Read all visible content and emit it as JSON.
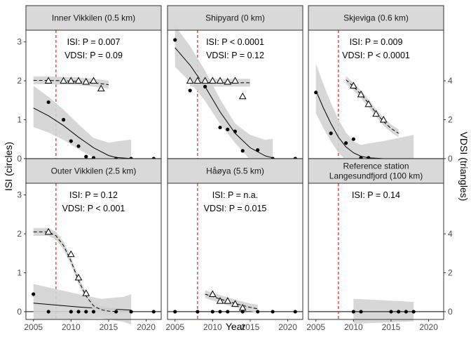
{
  "figure": {
    "xlabel": "Year",
    "ylabel_left": "ISI (circles)",
    "ylabel_right": "VDSI (triangles)"
  },
  "chart_data": [
    {
      "type": "scatter",
      "title": "Inner Vikkilen (0.5 km)",
      "annotations": [
        "ISI: P =  0.007",
        "VDSI: P =  0.09"
      ],
      "isi": {
        "x": [
          2007,
          2009,
          2010,
          2011,
          2012,
          2013,
          2016,
          2018,
          2021
        ],
        "y": [
          1.45,
          1.0,
          0.45,
          0.32,
          0.05,
          0.02,
          0.0,
          0.0,
          0.0
        ]
      },
      "isi_fit": {
        "x": [
          2005,
          2007,
          2009,
          2011,
          2013,
          2015,
          2016,
          2018
        ],
        "y": [
          1.3,
          1.1,
          0.85,
          0.55,
          0.28,
          0.08,
          0.03,
          0.0
        ]
      },
      "vdsi": {
        "x": [
          2007,
          2009,
          2010,
          2011,
          2012,
          2013,
          2014
        ],
        "y": [
          4.0,
          4.0,
          4.0,
          4.0,
          3.95,
          4.0,
          3.6
        ]
      },
      "vdsi_fit": {
        "x": [
          2005,
          2007,
          2009,
          2011,
          2013,
          2015
        ],
        "y": [
          4.02,
          4.02,
          4.0,
          3.97,
          3.9,
          3.8
        ]
      }
    },
    {
      "type": "scatter",
      "title": "Shipyard (0 km)",
      "annotations": [
        "ISI: P < 0.0001",
        "VDSI: P =  0.12"
      ],
      "isi": {
        "x": [
          2005,
          2007,
          2009,
          2010,
          2011,
          2012,
          2013,
          2014,
          2016,
          2018,
          2021
        ],
        "y": [
          3.05,
          1.75,
          1.85,
          2.0,
          0.8,
          0.75,
          0.7,
          0.2,
          0.22,
          0.0,
          0.0
        ]
      },
      "isi_fit": {
        "x": [
          2005,
          2007,
          2009,
          2011,
          2013,
          2015,
          2017,
          2018
        ],
        "y": [
          2.85,
          2.4,
          1.85,
          1.2,
          0.65,
          0.28,
          0.07,
          0.02
        ]
      },
      "vdsi": {
        "x": [
          2007,
          2008,
          2009,
          2010,
          2011,
          2012,
          2013,
          2014
        ],
        "y": [
          4.0,
          4.0,
          4.0,
          4.0,
          4.0,
          3.95,
          4.0,
          3.2
        ]
      },
      "vdsi_fit": {
        "x": [
          2007,
          2009,
          2011,
          2013,
          2015
        ],
        "y": [
          3.9,
          3.9,
          3.9,
          3.9,
          3.9
        ]
      }
    },
    {
      "type": "scatter",
      "title": "Skjeviga (0.6 km)",
      "annotations": [
        "ISI: P =  0.009",
        "VDSI: P < 0.0001"
      ],
      "isi": {
        "x": [
          2005,
          2007,
          2009,
          2010,
          2011,
          2012
        ],
        "y": [
          1.7,
          0.65,
          0.4,
          0.5,
          0.02,
          0.02
        ]
      },
      "isi_fit": {
        "x": [
          2005,
          2006,
          2007,
          2008,
          2009,
          2010,
          2011,
          2012,
          2014,
          2016,
          2018
        ],
        "y": [
          1.75,
          1.3,
          0.9,
          0.55,
          0.3,
          0.15,
          0.06,
          0.02,
          0.0,
          0.0,
          0.0
        ]
      },
      "vdsi": {
        "x": [
          2010,
          2011,
          2012,
          2013,
          2014
        ],
        "y": [
          3.75,
          3.3,
          2.8,
          2.3,
          2.0
        ]
      },
      "vdsi_fit": {
        "x": [
          2009,
          2010,
          2011,
          2012,
          2013,
          2014,
          2015,
          2016
        ],
        "y": [
          4.05,
          3.7,
          3.3,
          2.85,
          2.35,
          1.9,
          1.55,
          1.3
        ]
      }
    },
    {
      "type": "scatter",
      "title": "Outer Vikkilen (2.5 km)",
      "annotations": [
        "ISI: P =  0.12",
        "VDSI: P < 0.001"
      ],
      "isi": {
        "x": [
          2005,
          2007,
          2010,
          2011,
          2012,
          2013,
          2016,
          2018,
          2021
        ],
        "y": [
          0.45,
          0.0,
          0.0,
          0.0,
          0.0,
          0.0,
          0.0,
          0.0,
          0.0
        ]
      },
      "isi_fit": {
        "x": [
          2005,
          2008,
          2011,
          2014,
          2017,
          2018
        ],
        "y": [
          0.22,
          0.17,
          0.12,
          0.08,
          0.05,
          0.04
        ]
      },
      "vdsi": {
        "x": [
          2007,
          2010,
          2011,
          2012
        ],
        "y": [
          4.1,
          2.95,
          1.75,
          0.95
        ]
      },
      "vdsi_fit": {
        "x": [
          2005,
          2007,
          2008,
          2009,
          2010,
          2011,
          2012,
          2013,
          2014,
          2015,
          2016
        ],
        "y": [
          4.1,
          4.1,
          3.9,
          3.4,
          2.6,
          1.6,
          0.8,
          0.3,
          0.1,
          0.03,
          0.0
        ]
      }
    },
    {
      "type": "scatter",
      "title": "Håøya (5.5 km)",
      "annotations": [
        "ISI: P = n.a.",
        "VDSI: P =  0.015"
      ],
      "isi": {
        "x": [
          2005,
          2008,
          2010,
          2011,
          2012,
          2014,
          2016,
          2018,
          2021
        ],
        "y": [
          0.0,
          0.0,
          0.0,
          0.0,
          0.0,
          0.0,
          0.0,
          0.0,
          0.0
        ]
      },
      "isi_fit": {
        "x": [],
        "y": []
      },
      "vdsi": {
        "x": [
          2010,
          2011,
          2012,
          2013,
          2014
        ],
        "y": [
          0.9,
          0.55,
          0.55,
          0.4,
          0.2
        ]
      },
      "vdsi_fit": {
        "x": [
          2009,
          2011,
          2013,
          2015,
          2016
        ],
        "y": [
          0.9,
          0.65,
          0.42,
          0.22,
          0.15
        ]
      }
    },
    {
      "type": "scatter",
      "title": "Reference station\nLangesundfjord (100 km)",
      "annotations": [
        "ISI: P =  0.14",
        ""
      ],
      "isi": {
        "x": [
          2010,
          2011,
          2015,
          2016,
          2017,
          2018
        ],
        "y": [
          0.0,
          0.0,
          0.0,
          0.0,
          0.0,
          0.0
        ]
      },
      "isi_fit": {
        "x": [
          2010,
          2018
        ],
        "y": [
          0.0,
          0.0
        ]
      },
      "vdsi": {
        "x": [],
        "y": []
      },
      "vdsi_fit": {
        "x": [],
        "y": []
      }
    }
  ],
  "axes": {
    "xlim": [
      2004,
      2022
    ],
    "x_ticks": [
      2005,
      2010,
      2015,
      2020
    ],
    "isi_ylim": [
      -0.2,
      3.3
    ],
    "isi_ticks": [
      0,
      1,
      2,
      3
    ],
    "vdsi_ylim": [
      -0.4,
      6.6
    ],
    "vdsi_ticks": [
      0,
      2,
      4
    ],
    "ban_year": 2008
  },
  "colors": {
    "panel_bg": "#ffffff",
    "strip_bg": "#d9d9d9",
    "ci_band": "#d3d3d3",
    "ban_line": "#e02020",
    "points": "#000000"
  }
}
